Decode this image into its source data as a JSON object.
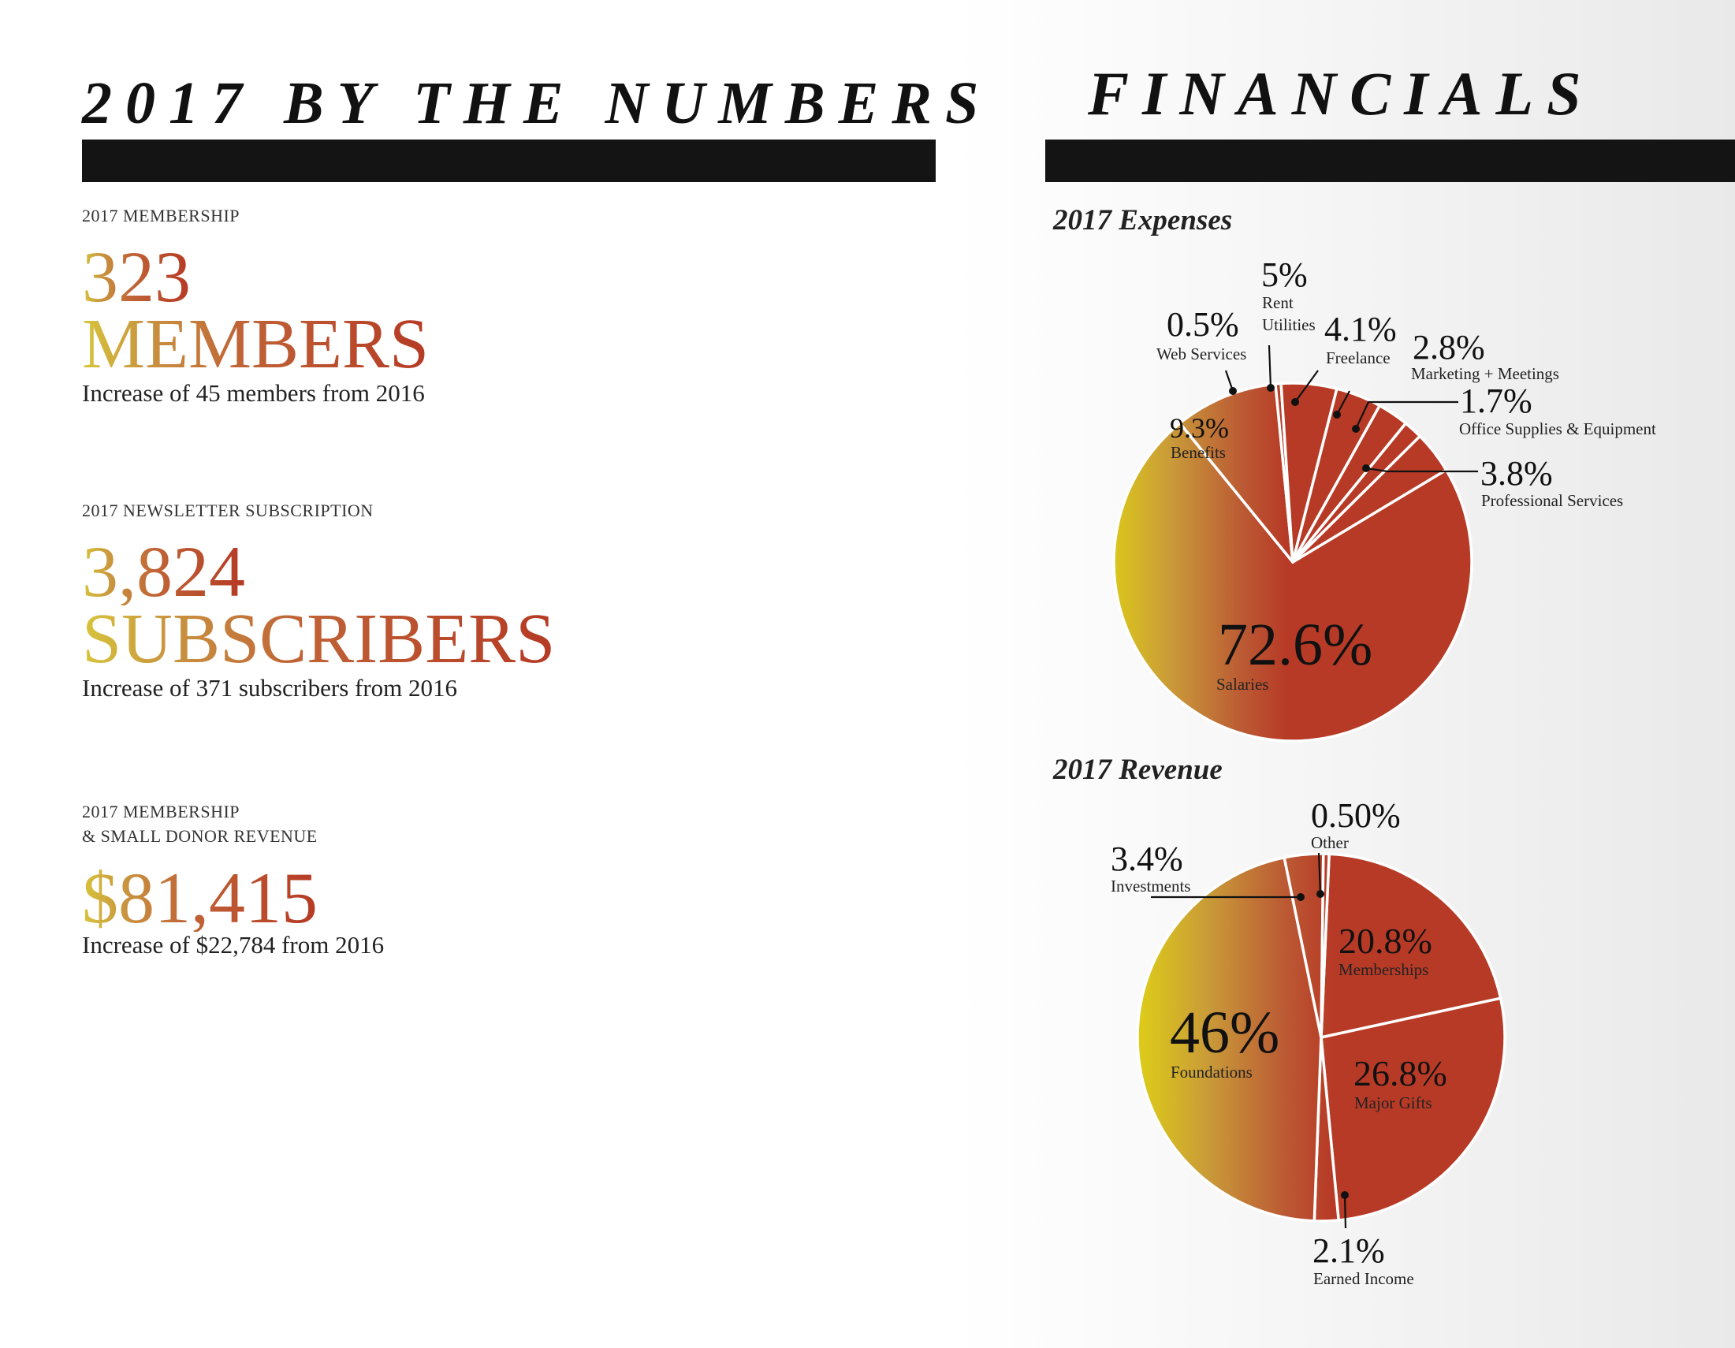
{
  "left": {
    "heading": "2017 BY THE NUMBERS",
    "stats": [
      {
        "caption_lines": [
          "2017 MEMBERSHIP"
        ],
        "number": "323",
        "unit": "MEMBERS",
        "note": "Increase of 45 members from 2016"
      },
      {
        "caption_lines": [
          "2017 NEWSLETTER SUBSCRIPTION"
        ],
        "number": "3,824",
        "unit": "SUBSCRIBERS",
        "note": "Increase of 371 subscribers from 2016"
      },
      {
        "caption_lines": [
          "2017 MEMBERSHIP",
          "& SMALL DONOR REVENUE"
        ],
        "number": "$81,415",
        "unit": "",
        "note": "Increase of $22,784 from 2016"
      }
    ]
  },
  "right": {
    "heading": "FINANCIALS"
  },
  "colors": {
    "red": "#b73a26",
    "gold": "#dcc91a",
    "bar": "#141414"
  },
  "chart_data": [
    {
      "type": "pie",
      "title": "2017 Expenses",
      "slices": [
        {
          "label": "Salaries",
          "pct_text": "72.6%",
          "value": 72.6
        },
        {
          "label": "Benefits",
          "pct_text": "9.3%",
          "value": 9.3
        },
        {
          "label": "Web Services",
          "pct_text": "0.5%",
          "value": 0.5
        },
        {
          "label": "Rent Utilities",
          "label_lines": [
            "Rent",
            "Utilities"
          ],
          "pct_text": "5%",
          "value": 5
        },
        {
          "label": "Freelance",
          "pct_text": "4.1%",
          "value": 4.1
        },
        {
          "label": "Marketing + Meetings",
          "pct_text": "2.8%",
          "value": 2.8
        },
        {
          "label": "Office Supplies & Equipment",
          "pct_text": "1.7%",
          "value": 1.7
        },
        {
          "label": "Professional Services",
          "pct_text": "3.8%",
          "value": 3.8
        }
      ]
    },
    {
      "type": "pie",
      "title": "2017 Revenue",
      "slices": [
        {
          "label": "Memberships",
          "pct_text": "20.8%",
          "value": 20.8
        },
        {
          "label": "Major Gifts",
          "pct_text": "26.8%",
          "value": 26.8
        },
        {
          "label": "Earned Income",
          "pct_text": "2.1%",
          "value": 2.1
        },
        {
          "label": "Foundations",
          "pct_text": "46%",
          "value": 46
        },
        {
          "label": "Investments",
          "pct_text": "3.4%",
          "value": 3.4
        },
        {
          "label": "Other",
          "pct_text": "0.50%",
          "value": 0.5
        }
      ]
    }
  ]
}
